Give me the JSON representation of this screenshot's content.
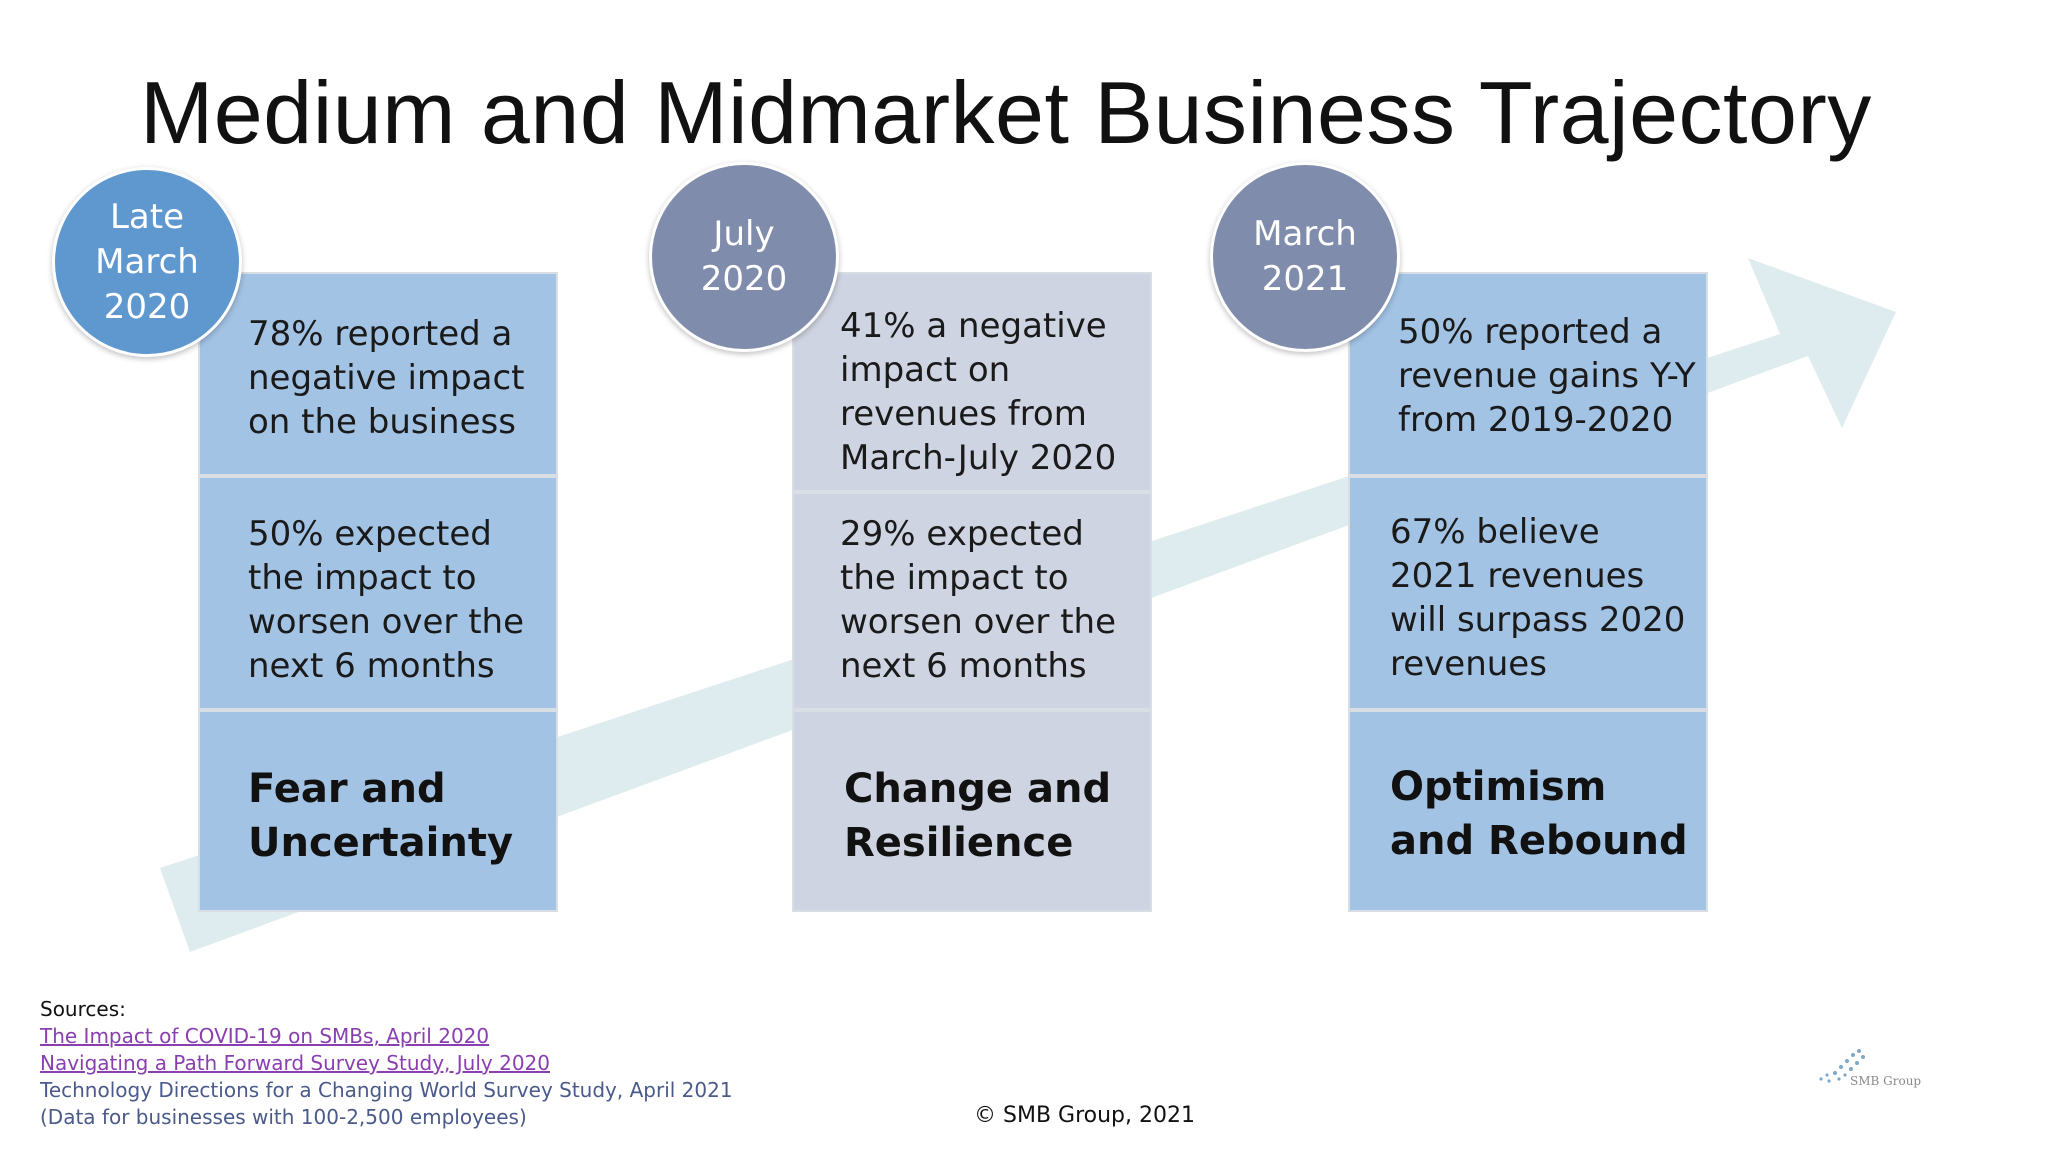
{
  "slide": {
    "title": "Medium and Midmarket Business Trajectory",
    "colors": {
      "blue_cell": "#a3c3e4",
      "grey_cell": "#ced4e1",
      "blue_badge": "#5f97cf",
      "grey_badge": "#7f8cab",
      "arrow": "#dfecef"
    }
  },
  "columns": [
    {
      "badge": [
        "Late",
        "March",
        "2020"
      ],
      "stat1": "78% reported a negative impact on the business",
      "stat2": "50% expected the impact to worsen over the next 6 months",
      "phase": "Fear and Uncertainty"
    },
    {
      "badge": [
        "July",
        "2020"
      ],
      "stat1": "41% a negative impact on revenues from March-July 2020",
      "stat2": "29% expected the impact to worsen over the next 6 months",
      "phase": "Change and Resilience"
    },
    {
      "badge": [
        "March",
        "2021"
      ],
      "stat1": "50% reported a revenue gains Y-Y from 2019-2020",
      "stat2": "67% believe 2021 revenues will surpass 2020 revenues",
      "phase": "Optimism and Rebound"
    }
  ],
  "sources": {
    "label": "Sources:",
    "links": [
      "The Impact of COVID-19 on SMBs, April 2020",
      "Navigating a Path Forward Survey Study, July 2020"
    ],
    "plain": [
      "Technology Directions for a Changing World Survey Study, April 2021",
      "(Data for businesses with 100-2,500 employees)"
    ]
  },
  "footer": {
    "copyright": "© SMB Group, 2021",
    "logo_text": "SMB Group",
    "logo_icon": "smb-group-logo-icon"
  }
}
